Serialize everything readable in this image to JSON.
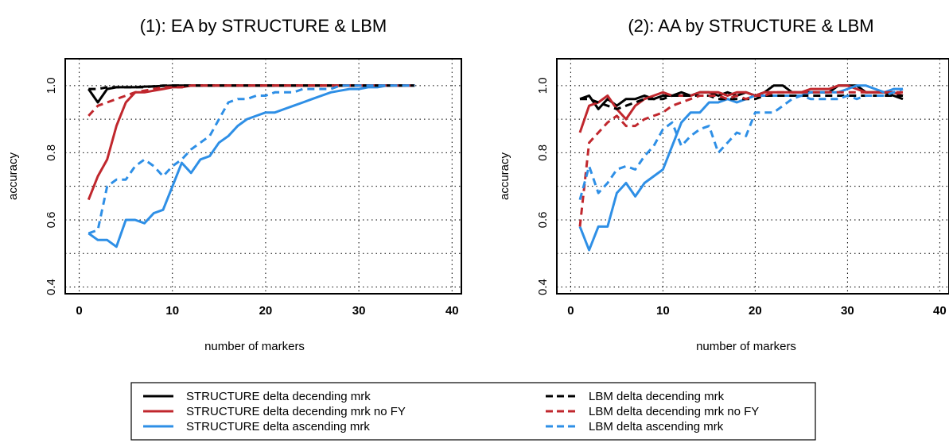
{
  "x_ticks": [
    0,
    10,
    20,
    30,
    40
  ],
  "y_ticks": [
    "0.4",
    "0.6",
    "0.8",
    "1.0"
  ],
  "chart_data": [
    {
      "type": "line",
      "title": "(1): EA by STRUCTURE & LBM",
      "xlabel": "number of markers",
      "ylabel": "accuracy",
      "xlim": [
        -1.5,
        41
      ],
      "ylim": [
        0.38,
        1.08
      ],
      "grid": true,
      "series": [
        {
          "name": "STRUCTURE delta decending mrk",
          "color": "#000000",
          "dash": false,
          "x": [
            1,
            2,
            3,
            4,
            5,
            6,
            7,
            8,
            9,
            10,
            11,
            12,
            13,
            14,
            15,
            16,
            17,
            18,
            19,
            20,
            21,
            22,
            23,
            24,
            25,
            26,
            27,
            28,
            29,
            30,
            31,
            32,
            33,
            34,
            35,
            36
          ],
          "y": [
            0.99,
            0.95,
            0.99,
            0.995,
            0.995,
            0.995,
            0.997,
            0.998,
            0.999,
            1,
            1,
            1,
            1,
            1,
            1,
            1,
            1,
            1,
            1,
            1,
            1,
            1,
            1,
            1,
            1,
            1,
            1,
            1,
            1,
            1,
            1,
            1,
            1,
            1,
            1,
            1
          ]
        },
        {
          "name": "STRUCTURE delta decending mrk no FY",
          "color": "#c0272d",
          "dash": false,
          "x": [
            1,
            2,
            3,
            4,
            5,
            6,
            7,
            8,
            9,
            10,
            11,
            12,
            13,
            14,
            15,
            16,
            17,
            18,
            19,
            20,
            21,
            22,
            23,
            24,
            25,
            26,
            27,
            28,
            29,
            30,
            31,
            32,
            33,
            34,
            35,
            36
          ],
          "y": [
            0.66,
            0.73,
            0.78,
            0.88,
            0.95,
            0.98,
            0.98,
            0.985,
            0.99,
            0.995,
            0.995,
            1,
            1,
            1,
            1,
            1,
            1,
            1,
            1,
            1,
            1,
            1,
            1,
            1,
            1,
            1,
            1,
            1,
            1,
            1,
            1,
            1,
            1,
            1,
            1,
            1
          ]
        },
        {
          "name": "STRUCTURE delta ascending mrk",
          "color": "#2e8fe6",
          "dash": false,
          "x": [
            1,
            2,
            3,
            4,
            5,
            6,
            7,
            8,
            9,
            10,
            11,
            12,
            13,
            14,
            15,
            16,
            17,
            18,
            19,
            20,
            21,
            22,
            23,
            24,
            25,
            26,
            27,
            28,
            29,
            30,
            31,
            32,
            33,
            34,
            35,
            36
          ],
          "y": [
            0.56,
            0.54,
            0.54,
            0.52,
            0.6,
            0.6,
            0.59,
            0.62,
            0.63,
            0.7,
            0.77,
            0.74,
            0.78,
            0.79,
            0.83,
            0.85,
            0.88,
            0.9,
            0.91,
            0.92,
            0.92,
            0.93,
            0.94,
            0.95,
            0.96,
            0.97,
            0.98,
            0.985,
            0.99,
            0.99,
            0.995,
            0.995,
            1,
            1,
            1,
            1
          ]
        },
        {
          "name": "LBM delta decending mrk",
          "color": "#000000",
          "dash": true,
          "x": [
            1,
            2,
            3,
            4,
            5,
            6,
            7,
            8,
            9,
            10,
            11,
            12,
            13,
            14,
            15,
            16,
            17,
            18,
            19,
            20,
            21,
            22,
            23,
            24,
            25,
            26,
            27,
            28,
            29,
            30,
            31,
            32,
            33,
            34,
            35,
            36
          ],
          "y": [
            0.99,
            0.99,
            0.995,
            0.995,
            0.995,
            0.995,
            0.995,
            0.998,
            1,
            1,
            1,
            1,
            1,
            1,
            1,
            1,
            1,
            1,
            1,
            1,
            1,
            1,
            1,
            1,
            1,
            1,
            1,
            1,
            1,
            1,
            1,
            1,
            1,
            1,
            1,
            1
          ]
        },
        {
          "name": "LBM delta decending mrk no FY",
          "color": "#c0272d",
          "dash": true,
          "x": [
            1,
            2,
            3,
            4,
            5,
            6,
            7,
            8,
            9,
            10,
            11,
            12,
            13,
            14,
            15,
            16,
            17,
            18,
            19,
            20,
            21,
            22,
            23,
            24,
            25,
            26,
            27,
            28,
            29,
            30,
            31,
            32,
            33,
            34,
            35,
            36
          ],
          "y": [
            0.91,
            0.94,
            0.95,
            0.96,
            0.97,
            0.98,
            0.985,
            0.99,
            0.995,
            0.995,
            0.995,
            1,
            1,
            1,
            1,
            1,
            1,
            1,
            1,
            1,
            1,
            1,
            1,
            1,
            1,
            1,
            1,
            1,
            1,
            1,
            1,
            1,
            1,
            1,
            1,
            1
          ]
        },
        {
          "name": "LBM delta ascending mrk",
          "color": "#2e8fe6",
          "dash": true,
          "x": [
            1,
            2,
            3,
            4,
            5,
            6,
            7,
            8,
            9,
            10,
            11,
            12,
            13,
            14,
            15,
            16,
            17,
            18,
            19,
            20,
            21,
            22,
            23,
            24,
            25,
            26,
            27,
            28,
            29,
            30,
            31,
            32,
            33,
            34,
            35,
            36
          ],
          "y": [
            0.56,
            0.57,
            0.7,
            0.72,
            0.72,
            0.76,
            0.78,
            0.76,
            0.73,
            0.76,
            0.78,
            0.81,
            0.83,
            0.85,
            0.9,
            0.95,
            0.96,
            0.96,
            0.97,
            0.97,
            0.98,
            0.98,
            0.98,
            0.99,
            0.99,
            0.99,
            0.99,
            1,
            1,
            1,
            1,
            1,
            1,
            1,
            1,
            1
          ]
        }
      ]
    },
    {
      "type": "line",
      "title": "(2): AA by STRUCTURE & LBM",
      "xlabel": "number of markers",
      "ylabel": "accuracy",
      "xlim": [
        -1.5,
        41
      ],
      "ylim": [
        0.38,
        1.08
      ],
      "grid": true,
      "series": [
        {
          "name": "STRUCTURE delta decending mrk",
          "color": "#000000",
          "dash": false,
          "x": [
            1,
            2,
            3,
            4,
            5,
            6,
            7,
            8,
            9,
            10,
            11,
            12,
            13,
            14,
            15,
            16,
            17,
            18,
            19,
            20,
            21,
            22,
            23,
            24,
            25,
            26,
            27,
            28,
            29,
            30,
            31,
            32,
            33,
            34,
            35,
            36
          ],
          "y": [
            0.96,
            0.97,
            0.93,
            0.96,
            0.94,
            0.96,
            0.96,
            0.97,
            0.96,
            0.97,
            0.97,
            0.98,
            0.97,
            0.98,
            0.98,
            0.97,
            0.98,
            0.97,
            0.98,
            0.97,
            0.98,
            1,
            1,
            0.98,
            0.98,
            0.98,
            0.98,
            0.98,
            1,
            1,
            1,
            0.98,
            0.98,
            0.98,
            0.97,
            0.96
          ]
        },
        {
          "name": "STRUCTURE delta decending mrk no FY",
          "color": "#c0272d",
          "dash": false,
          "x": [
            1,
            2,
            3,
            4,
            5,
            6,
            7,
            8,
            9,
            10,
            11,
            12,
            13,
            14,
            15,
            16,
            17,
            18,
            19,
            20,
            21,
            22,
            23,
            24,
            25,
            26,
            27,
            28,
            29,
            30,
            31,
            32,
            33,
            34,
            35,
            36
          ],
          "y": [
            0.86,
            0.94,
            0.95,
            0.97,
            0.93,
            0.9,
            0.94,
            0.96,
            0.97,
            0.98,
            0.97,
            0.97,
            0.97,
            0.98,
            0.98,
            0.98,
            0.97,
            0.98,
            0.98,
            0.97,
            0.98,
            0.98,
            0.98,
            0.98,
            0.98,
            0.99,
            0.99,
            0.99,
            1,
            1,
            0.99,
            0.98,
            0.98,
            0.98,
            0.98,
            0.97
          ]
        },
        {
          "name": "STRUCTURE delta ascending mrk",
          "color": "#2e8fe6",
          "dash": false,
          "x": [
            1,
            2,
            3,
            4,
            5,
            6,
            7,
            8,
            9,
            10,
            11,
            12,
            13,
            14,
            15,
            16,
            17,
            18,
            19,
            20,
            21,
            22,
            23,
            24,
            25,
            26,
            27,
            28,
            29,
            30,
            31,
            32,
            33,
            34,
            35,
            36
          ],
          "y": [
            0.58,
            0.51,
            0.58,
            0.58,
            0.68,
            0.71,
            0.67,
            0.71,
            0.73,
            0.75,
            0.82,
            0.89,
            0.92,
            0.92,
            0.95,
            0.95,
            0.96,
            0.95,
            0.96,
            0.97,
            0.97,
            0.97,
            0.97,
            0.97,
            0.97,
            0.98,
            0.98,
            0.98,
            0.98,
            0.99,
            1,
            1,
            0.99,
            0.98,
            0.99,
            0.99
          ]
        },
        {
          "name": "LBM delta decending mrk",
          "color": "#000000",
          "dash": true,
          "x": [
            1,
            2,
            3,
            4,
            5,
            6,
            7,
            8,
            9,
            10,
            11,
            12,
            13,
            14,
            15,
            16,
            17,
            18,
            19,
            20,
            21,
            22,
            23,
            24,
            25,
            26,
            27,
            28,
            29,
            30,
            31,
            32,
            33,
            34,
            35,
            36
          ],
          "y": [
            0.96,
            0.96,
            0.95,
            0.94,
            0.93,
            0.94,
            0.95,
            0.96,
            0.96,
            0.96,
            0.97,
            0.97,
            0.97,
            0.97,
            0.97,
            0.96,
            0.96,
            0.96,
            0.96,
            0.96,
            0.97,
            0.97,
            0.97,
            0.97,
            0.97,
            0.97,
            0.97,
            0.97,
            0.97,
            0.97,
            0.97,
            0.97,
            0.97,
            0.97,
            0.97,
            0.97
          ]
        },
        {
          "name": "LBM delta decending mrk no FY",
          "color": "#c0272d",
          "dash": true,
          "x": [
            1,
            2,
            3,
            4,
            5,
            6,
            7,
            8,
            9,
            10,
            11,
            12,
            13,
            14,
            15,
            16,
            17,
            18,
            19,
            20,
            21,
            22,
            23,
            24,
            25,
            26,
            27,
            28,
            29,
            30,
            31,
            32,
            33,
            34,
            35,
            36
          ],
          "y": [
            0.58,
            0.83,
            0.86,
            0.89,
            0.91,
            0.88,
            0.88,
            0.9,
            0.91,
            0.92,
            0.94,
            0.95,
            0.96,
            0.97,
            0.97,
            0.97,
            0.96,
            0.97,
            0.96,
            0.97,
            0.97,
            0.98,
            0.98,
            0.98,
            0.98,
            0.98,
            0.98,
            0.98,
            0.98,
            0.98,
            0.98,
            0.98,
            0.98,
            0.98,
            0.98,
            0.98
          ]
        },
        {
          "name": "LBM delta ascending mrk",
          "color": "#2e8fe6",
          "dash": true,
          "x": [
            1,
            2,
            3,
            4,
            5,
            6,
            7,
            8,
            9,
            10,
            11,
            12,
            13,
            14,
            15,
            16,
            17,
            18,
            19,
            20,
            21,
            22,
            23,
            24,
            25,
            26,
            27,
            28,
            29,
            30,
            31,
            32,
            33,
            34,
            35,
            36
          ],
          "y": [
            0.66,
            0.76,
            0.68,
            0.71,
            0.75,
            0.76,
            0.75,
            0.79,
            0.82,
            0.87,
            0.89,
            0.82,
            0.85,
            0.87,
            0.88,
            0.8,
            0.83,
            0.86,
            0.85,
            0.92,
            0.92,
            0.92,
            0.94,
            0.96,
            0.97,
            0.96,
            0.96,
            0.96,
            0.96,
            0.97,
            0.96,
            0.97,
            0.97,
            0.97,
            0.98,
            0.99
          ]
        }
      ]
    }
  ]
}
